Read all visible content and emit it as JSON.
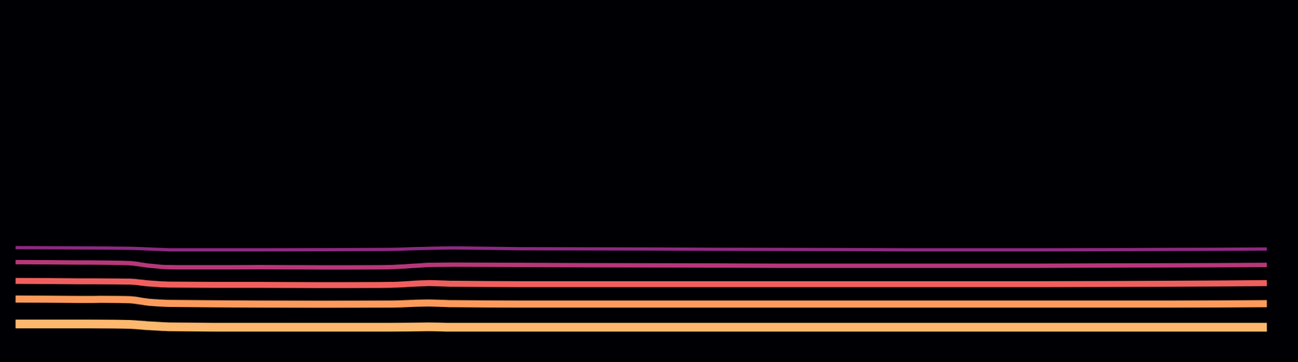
{
  "chart_data": {
    "type": "line",
    "x": [
      0.012,
      0.06,
      0.1,
      0.115,
      0.13,
      0.2,
      0.3,
      0.33,
      0.35,
      0.4,
      0.5,
      0.6,
      0.7,
      0.8,
      0.9,
      0.976
    ],
    "xlim": [
      0,
      1
    ],
    "xticks": [
      0,
      1
    ],
    "ylim": [
      0,
      1
    ],
    "yticks": [
      0,
      1
    ],
    "grid": false,
    "tick_labels": false,
    "marker": "none",
    "line_style": "solid",
    "series": [
      {
        "color": "#fdb86e",
        "values": [
          0.105,
          0.105,
          0.104,
          0.1,
          0.097,
          0.096,
          0.096,
          0.097,
          0.096,
          0.096,
          0.096,
          0.096,
          0.096,
          0.096,
          0.096,
          0.096
        ]
      },
      {
        "color": "#fc9a5c",
        "values": [
          0.174,
          0.173,
          0.172,
          0.165,
          0.162,
          0.16,
          0.16,
          0.163,
          0.161,
          0.16,
          0.16,
          0.16,
          0.16,
          0.16,
          0.16,
          0.161
        ]
      },
      {
        "color": "#ef5f5e",
        "values": [
          0.224,
          0.223,
          0.222,
          0.217,
          0.214,
          0.213,
          0.213,
          0.218,
          0.216,
          0.215,
          0.215,
          0.215,
          0.215,
          0.215,
          0.216,
          0.218
        ]
      },
      {
        "color": "#b73779",
        "values": [
          0.276,
          0.275,
          0.273,
          0.266,
          0.262,
          0.262,
          0.262,
          0.268,
          0.269,
          0.268,
          0.267,
          0.266,
          0.266,
          0.266,
          0.267,
          0.268
        ]
      },
      {
        "color": "#8c2981",
        "values": [
          0.316,
          0.315,
          0.314,
          0.312,
          0.31,
          0.31,
          0.311,
          0.314,
          0.315,
          0.313,
          0.312,
          0.311,
          0.31,
          0.31,
          0.311,
          0.312
        ]
      }
    ]
  }
}
